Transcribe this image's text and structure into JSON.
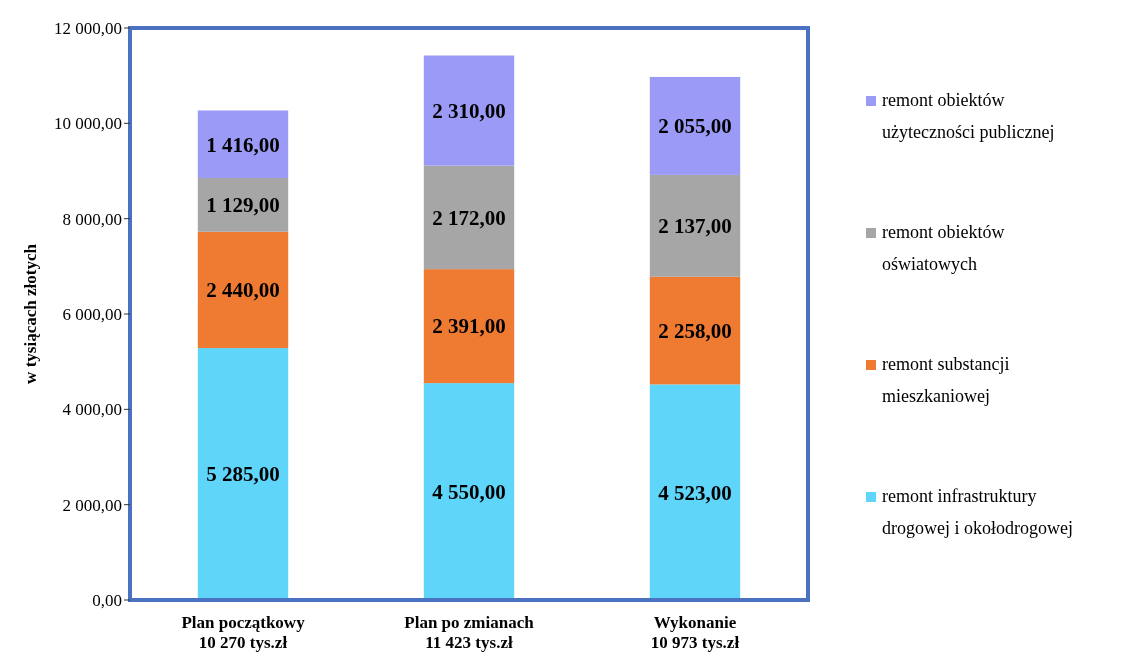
{
  "chart_data": {
    "type": "bar",
    "stacked": true,
    "ylabel": "w tysiącach złotych",
    "categories": [
      "Plan początkowy\n10 270 tys.zł",
      "Plan po zmianach\n11 423 tys.zł",
      "Wykonanie\n10 973 tys.zł"
    ],
    "series": [
      {
        "name": "remont infrastruktury drogowej i okołodrogowej",
        "color": "#5fd5f9",
        "values": [
          5285,
          4550,
          4523
        ],
        "value_labels": [
          "5 285,00",
          "4 550,00",
          "4 523,00"
        ]
      },
      {
        "name": "remont substancji mieszkaniowej",
        "color": "#ef7a32",
        "values": [
          2440,
          2391,
          2258
        ],
        "value_labels": [
          "2 440,00",
          "2 391,00",
          "2 258,00"
        ]
      },
      {
        "name": "remont obiektów oświatowych",
        "color": "#a6a6a6",
        "values": [
          1129,
          2172,
          2137
        ],
        "value_labels": [
          "1 129,00",
          "2 172,00",
          "2 137,00"
        ]
      },
      {
        "name": "remont obiektów użyteczności publicznej",
        "color": "#9b9bf7",
        "values": [
          1416,
          2310,
          2055
        ],
        "value_labels": [
          "1 416,00",
          "2 310,00",
          "2 055,00"
        ]
      }
    ],
    "ylim": [
      0,
      12000
    ],
    "yticks": [
      {
        "value": 0,
        "label": "0,00"
      },
      {
        "value": 2000,
        "label": "2 000,00"
      },
      {
        "value": 4000,
        "label": "4 000,00"
      },
      {
        "value": 6000,
        "label": "6 000,00"
      },
      {
        "value": 8000,
        "label": "8 000,00"
      },
      {
        "value": 10000,
        "label": "10 000,00"
      },
      {
        "value": 12000,
        "label": "12 000,00"
      }
    ],
    "grid": false,
    "legend": "right"
  }
}
